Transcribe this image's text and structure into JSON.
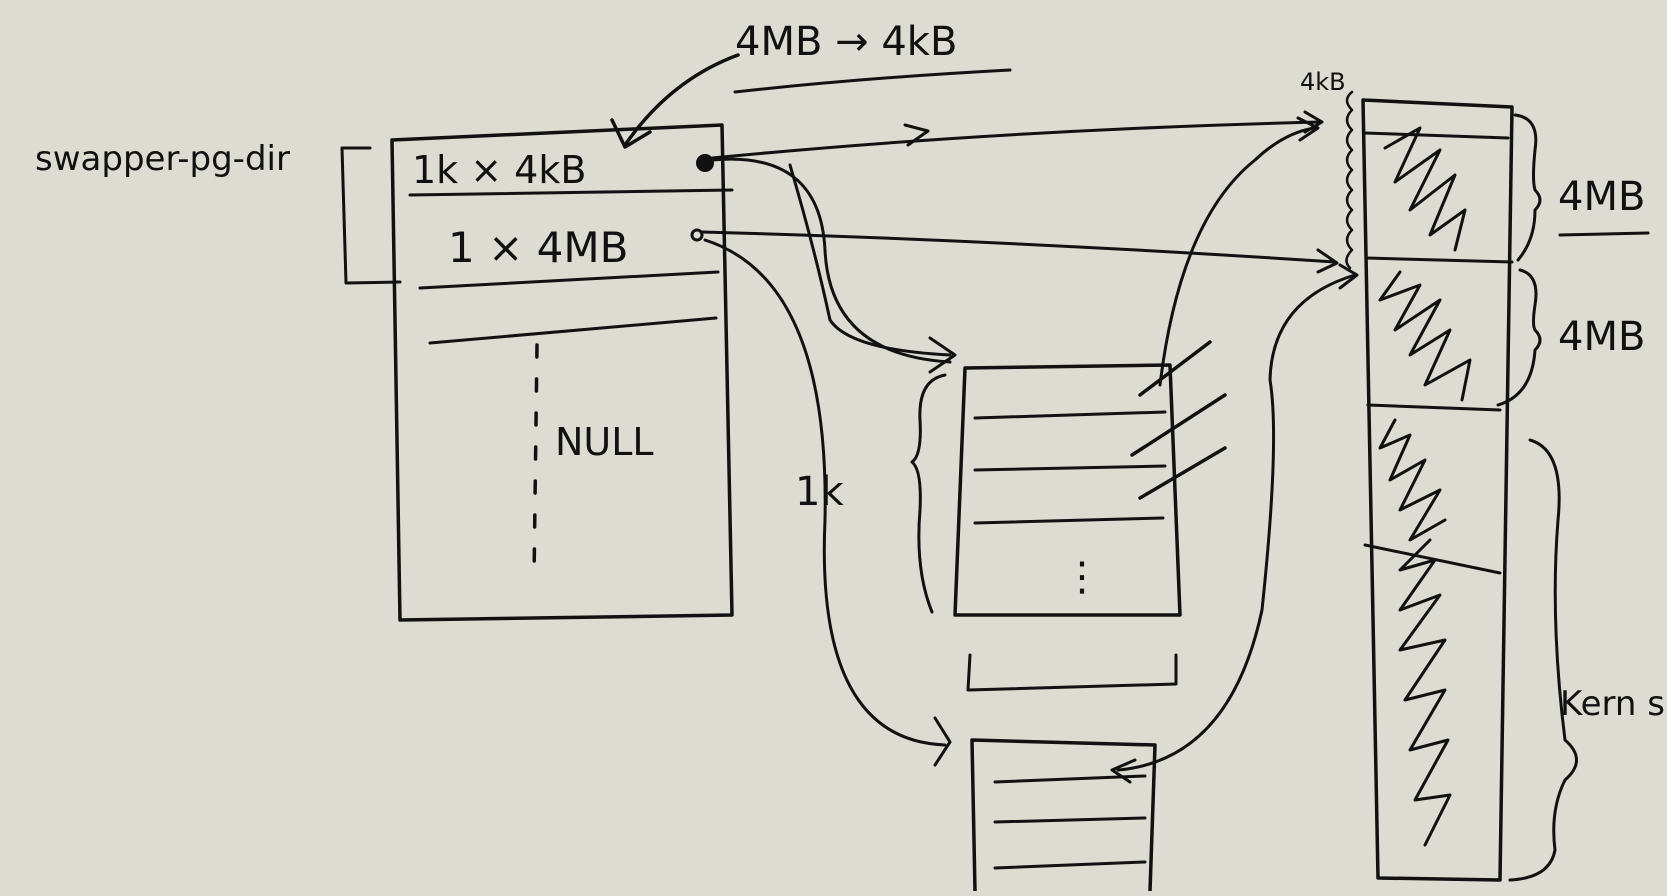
{
  "colors": {
    "background": "#dcdcd3",
    "ink": "#111111"
  },
  "labels": {
    "top_note": "4MB → 4kB",
    "pointer_name": "swapper-pg-dir",
    "entry_small": "1k × 4kB",
    "entry_big": "1 × 4MB",
    "null_label": "NULL",
    "count_1k": "1k",
    "right_top_4kb": "4kB",
    "size_4mb_a": "4MB",
    "size_4mb_b": "4MB",
    "kern_size": "Kern size",
    "dots": "⋮"
  }
}
